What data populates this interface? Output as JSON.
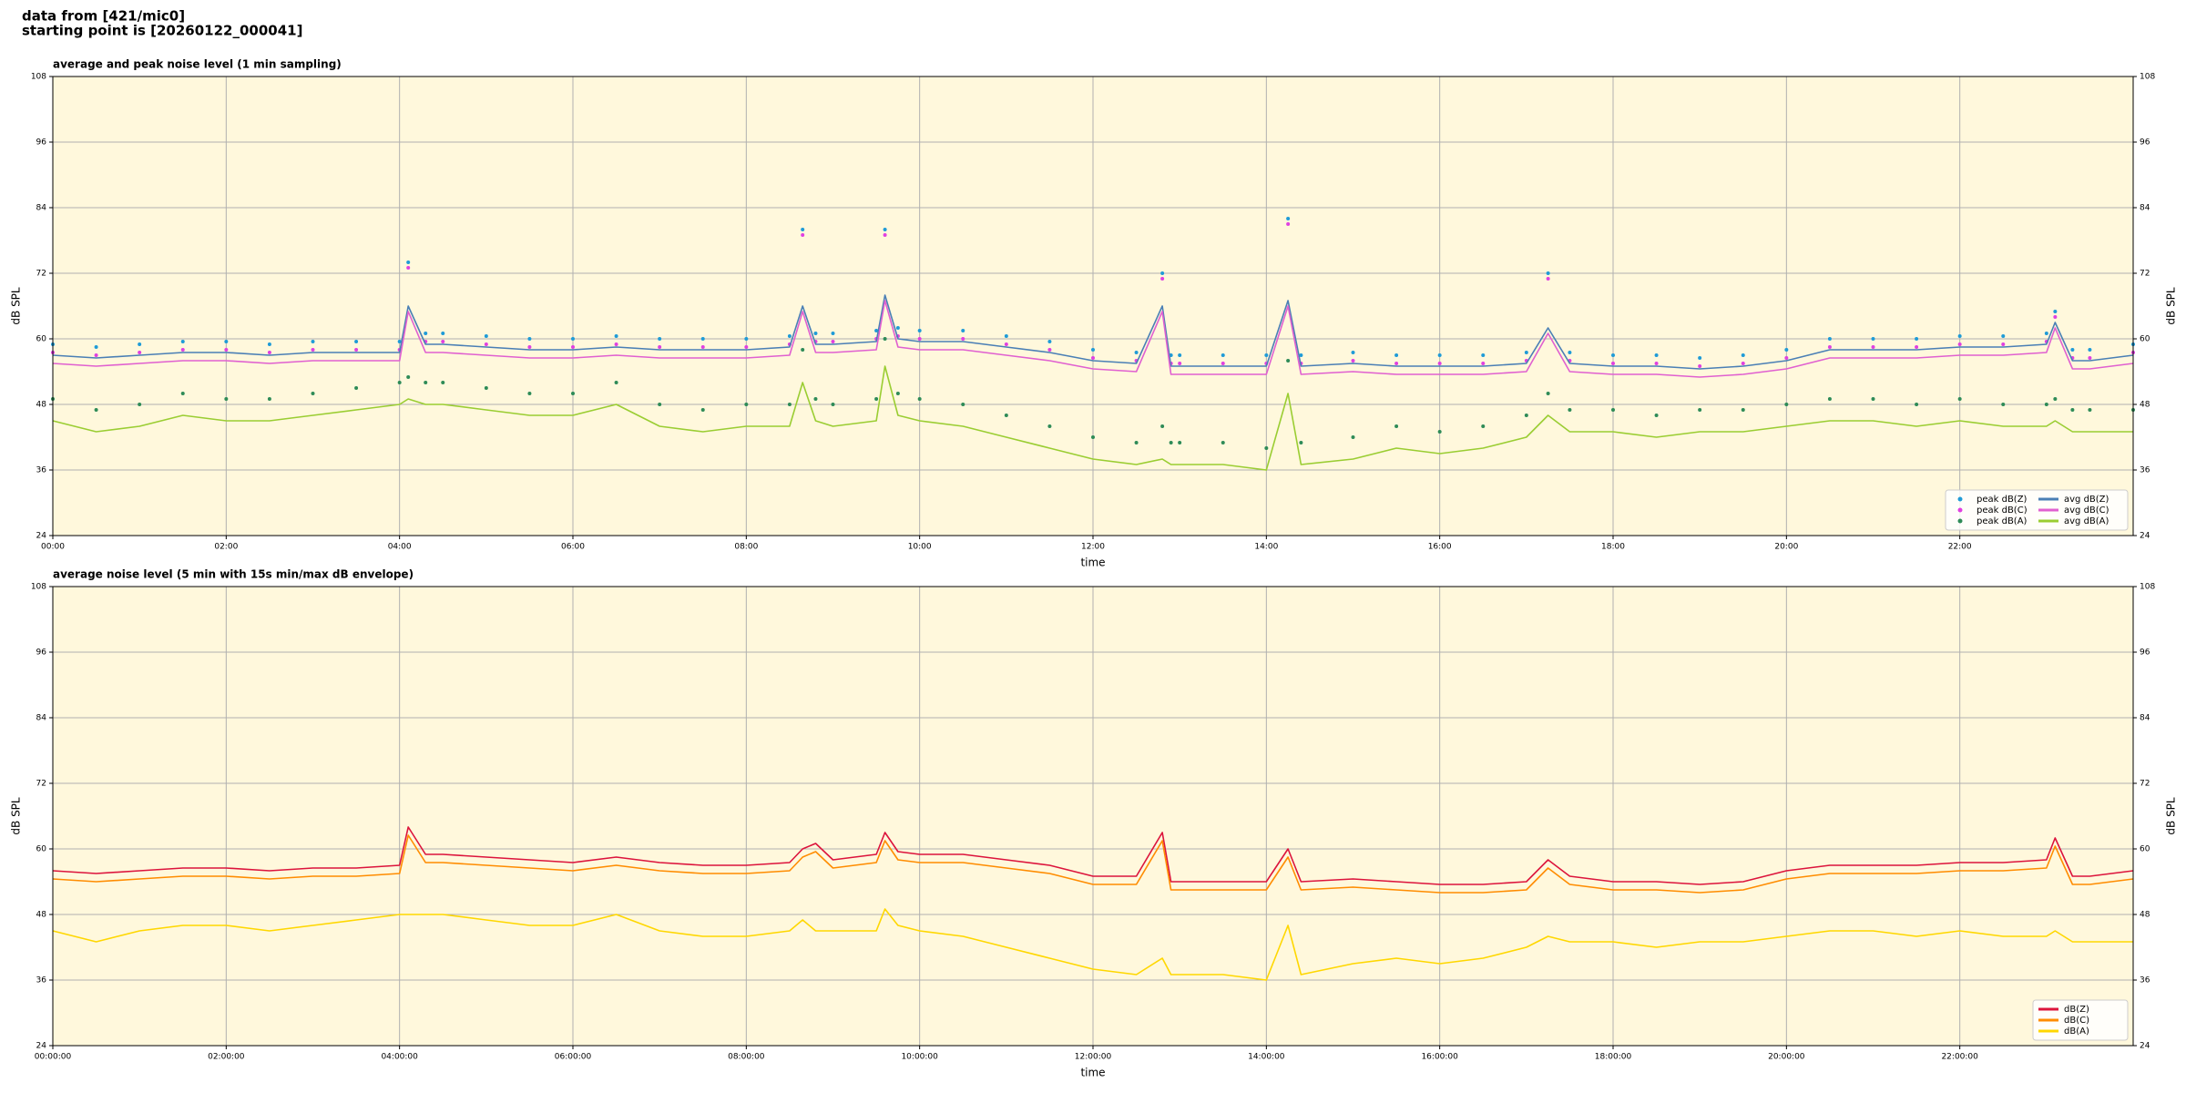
{
  "header": [
    "data from [421/mic0]",
    "starting point is [20260122_000041]"
  ],
  "chart_data": [
    {
      "type": "line",
      "title": "average and peak noise level (1 min sampling)",
      "xlabel": "time",
      "ylabel": "dB SPL",
      "xlim": [
        0,
        24
      ],
      "ylim": [
        24,
        108
      ],
      "grid": true,
      "legend": "lower right",
      "background": "#fff8dc",
      "xticks": [
        {
          "value": 0,
          "label": "00:00"
        },
        {
          "value": 2,
          "label": "02:00"
        },
        {
          "value": 4,
          "label": "04:00"
        },
        {
          "value": 6,
          "label": "06:00"
        },
        {
          "value": 8,
          "label": "08:00"
        },
        {
          "value": 10,
          "label": "10:00"
        },
        {
          "value": 12,
          "label": "12:00"
        },
        {
          "value": 14,
          "label": "14:00"
        },
        {
          "value": 16,
          "label": "16:00"
        },
        {
          "value": 18,
          "label": "18:00"
        },
        {
          "value": 20,
          "label": "20:00"
        },
        {
          "value": 22,
          "label": "22:00"
        }
      ],
      "yticks": [
        24,
        36,
        48,
        60,
        72,
        84,
        96,
        108
      ],
      "x": [
        0,
        0.5,
        1,
        1.5,
        2,
        2.5,
        3,
        3.5,
        4,
        4.1,
        4.3,
        4.5,
        5,
        5.5,
        6,
        6.5,
        7,
        7.5,
        8,
        8.5,
        8.65,
        8.8,
        9,
        9.5,
        9.6,
        9.75,
        10,
        10.5,
        11,
        11.5,
        12,
        12.5,
        12.8,
        12.9,
        13,
        13.5,
        14,
        14.25,
        14.4,
        15,
        15.5,
        16,
        16.5,
        17,
        17.25,
        17.5,
        18,
        18.5,
        19,
        19.5,
        20,
        20.5,
        21,
        21.5,
        22,
        22.5,
        23,
        23.1,
        23.3,
        23.5,
        24
      ],
      "series": [
        {
          "name": "peak dB(Z)",
          "type": "scatter",
          "color": "#1f9bd7",
          "values": [
            59,
            58.5,
            59,
            59.5,
            59.5,
            59,
            59.5,
            59.5,
            59.5,
            74,
            61,
            61,
            60.5,
            60,
            60,
            60.5,
            60,
            60,
            60,
            60.5,
            80,
            61,
            61,
            61.5,
            80,
            62,
            61.5,
            61.5,
            60.5,
            59.5,
            58,
            57.5,
            72,
            57,
            57,
            57,
            57,
            82,
            57,
            57.5,
            57,
            57,
            57,
            57.5,
            72,
            57.5,
            57,
            57,
            56.5,
            57,
            58,
            60,
            60,
            60,
            60.5,
            60.5,
            61,
            65,
            58,
            58,
            59
          ]
        },
        {
          "name": "peak dB(C)",
          "type": "scatter",
          "color": "#e040e0",
          "values": [
            57.5,
            57,
            57.5,
            58,
            58,
            57.5,
            58,
            58,
            58,
            73,
            59.5,
            59.5,
            59,
            58.5,
            58.5,
            59,
            58.5,
            58.5,
            58.5,
            59,
            79,
            59.5,
            59.5,
            60,
            79,
            60.5,
            60,
            60,
            59,
            58,
            56.5,
            56,
            71,
            55.5,
            55.5,
            55.5,
            55.5,
            81,
            55.5,
            56,
            55.5,
            55.5,
            55.5,
            56,
            71,
            56,
            55.5,
            55.5,
            55,
            55.5,
            56.5,
            58.5,
            58.5,
            58.5,
            59,
            59,
            59.5,
            64,
            56.5,
            56.5,
            57.5
          ]
        },
        {
          "name": "peak dB(A)",
          "type": "scatter",
          "color": "#2e8b57",
          "values": [
            49,
            47,
            48,
            50,
            49,
            49,
            50,
            51,
            52,
            53,
            52,
            52,
            51,
            50,
            50,
            52,
            48,
            47,
            48,
            48,
            58,
            49,
            48,
            49,
            60,
            50,
            49,
            48,
            46,
            44,
            42,
            41,
            44,
            41,
            41,
            41,
            40,
            56,
            41,
            42,
            44,
            43,
            44,
            46,
            50,
            47,
            47,
            46,
            47,
            47,
            48,
            49,
            49,
            48,
            49,
            48,
            48,
            49,
            47,
            47,
            47
          ]
        },
        {
          "name": "avg dB(Z)",
          "type": "line",
          "color": "#4a7fb5",
          "values": [
            57,
            56.5,
            57,
            57.5,
            57.5,
            57,
            57.5,
            57.5,
            57.5,
            66,
            59,
            59,
            58.5,
            58,
            58,
            58.5,
            58,
            58,
            58,
            58.5,
            66,
            59,
            59,
            59.5,
            68,
            60,
            59.5,
            59.5,
            58.5,
            57.5,
            56,
            55.5,
            66,
            55,
            55,
            55,
            55,
            67,
            55,
            55.5,
            55,
            55,
            55,
            55.5,
            62,
            55.5,
            55,
            55,
            54.5,
            55,
            56,
            58,
            58,
            58,
            58.5,
            58.5,
            59,
            63,
            56,
            56,
            57
          ]
        },
        {
          "name": "avg dB(C)",
          "type": "line",
          "color": "#e060d0",
          "values": [
            55.5,
            55,
            55.5,
            56,
            56,
            55.5,
            56,
            56,
            56,
            65,
            57.5,
            57.5,
            57,
            56.5,
            56.5,
            57,
            56.5,
            56.5,
            56.5,
            57,
            65,
            57.5,
            57.5,
            58,
            67,
            58.5,
            58,
            58,
            57,
            56,
            54.5,
            54,
            65,
            53.5,
            53.5,
            53.5,
            53.5,
            66,
            53.5,
            54,
            53.5,
            53.5,
            53.5,
            54,
            61,
            54,
            53.5,
            53.5,
            53,
            53.5,
            54.5,
            56.5,
            56.5,
            56.5,
            57,
            57,
            57.5,
            62,
            54.5,
            54.5,
            55.5
          ]
        },
        {
          "name": "avg dB(A)",
          "type": "line",
          "color": "#9acd32",
          "values": [
            45,
            43,
            44,
            46,
            45,
            45,
            46,
            47,
            48,
            49,
            48,
            48,
            47,
            46,
            46,
            48,
            44,
            43,
            44,
            44,
            52,
            45,
            44,
            45,
            55,
            46,
            45,
            44,
            42,
            40,
            38,
            37,
            38,
            37,
            37,
            37,
            36,
            50,
            37,
            38,
            40,
            39,
            40,
            42,
            46,
            43,
            43,
            42,
            43,
            43,
            44,
            45,
            45,
            44,
            45,
            44,
            44,
            45,
            43,
            43,
            43
          ]
        }
      ]
    },
    {
      "type": "line",
      "title": "average noise level (5 min with 15s min/max dB envelope)",
      "xlabel": "time",
      "ylabel": "dB SPL",
      "xlim": [
        0,
        24
      ],
      "ylim": [
        24,
        108
      ],
      "grid": true,
      "legend": "lower right",
      "background": "#fff8dc",
      "xticks": [
        {
          "value": 0,
          "label": "00:00:00"
        },
        {
          "value": 2,
          "label": "02:00:00"
        },
        {
          "value": 4,
          "label": "04:00:00"
        },
        {
          "value": 6,
          "label": "06:00:00"
        },
        {
          "value": 8,
          "label": "08:00:00"
        },
        {
          "value": 10,
          "label": "10:00:00"
        },
        {
          "value": 12,
          "label": "12:00:00"
        },
        {
          "value": 14,
          "label": "14:00:00"
        },
        {
          "value": 16,
          "label": "16:00:00"
        },
        {
          "value": 18,
          "label": "18:00:00"
        },
        {
          "value": 20,
          "label": "20:00:00"
        },
        {
          "value": 22,
          "label": "22:00:00"
        }
      ],
      "yticks": [
        24,
        36,
        48,
        60,
        72,
        84,
        96,
        108
      ],
      "x": [
        0,
        0.5,
        1,
        1.5,
        2,
        2.5,
        3,
        3.5,
        4,
        4.1,
        4.3,
        4.5,
        5,
        5.5,
        6,
        6.5,
        7,
        7.5,
        8,
        8.5,
        8.65,
        8.8,
        9,
        9.5,
        9.6,
        9.75,
        10,
        10.5,
        11,
        11.5,
        12,
        12.5,
        12.8,
        12.9,
        13,
        13.5,
        14,
        14.25,
        14.4,
        15,
        15.5,
        16,
        16.5,
        17,
        17.25,
        17.5,
        18,
        18.5,
        19,
        19.5,
        20,
        20.5,
        21,
        21.5,
        22,
        22.5,
        23,
        23.1,
        23.3,
        23.5,
        24
      ],
      "series": [
        {
          "name": "dB(Z)",
          "type": "line",
          "color": "#dc143c",
          "values": [
            56,
            55.5,
            56,
            56.5,
            56.5,
            56,
            56.5,
            56.5,
            57,
            64,
            59,
            59,
            58.5,
            58,
            57.5,
            58.5,
            57.5,
            57,
            57,
            57.5,
            60,
            61,
            58,
            59,
            63,
            59.5,
            59,
            59,
            58,
            57,
            55,
            55,
            63,
            54,
            54,
            54,
            54,
            60,
            54,
            54.5,
            54,
            53.5,
            53.5,
            54,
            58,
            55,
            54,
            54,
            53.5,
            54,
            56,
            57,
            57,
            57,
            57.5,
            57.5,
            58,
            62,
            55,
            55,
            56
          ]
        },
        {
          "name": "dB(C)",
          "type": "line",
          "color": "#ff8c00",
          "values": [
            54.5,
            54,
            54.5,
            55,
            55,
            54.5,
            55,
            55,
            55.5,
            62.5,
            57.5,
            57.5,
            57,
            56.5,
            56,
            57,
            56,
            55.5,
            55.5,
            56,
            58.5,
            59.5,
            56.5,
            57.5,
            61.5,
            58,
            57.5,
            57.5,
            56.5,
            55.5,
            53.5,
            53.5,
            61.5,
            52.5,
            52.5,
            52.5,
            52.5,
            58.5,
            52.5,
            53,
            52.5,
            52,
            52,
            52.5,
            56.5,
            53.5,
            52.5,
            52.5,
            52,
            52.5,
            54.5,
            55.5,
            55.5,
            55.5,
            56,
            56,
            56.5,
            60.5,
            53.5,
            53.5,
            54.5
          ]
        },
        {
          "name": "dB(A)",
          "type": "line",
          "color": "#ffd700",
          "values": [
            45,
            43,
            45,
            46,
            46,
            45,
            46,
            47,
            48,
            48,
            48,
            48,
            47,
            46,
            46,
            48,
            45,
            44,
            44,
            45,
            47,
            45,
            45,
            45,
            49,
            46,
            45,
            44,
            42,
            40,
            38,
            37,
            40,
            37,
            37,
            37,
            36,
            46,
            37,
            39,
            40,
            39,
            40,
            42,
            44,
            43,
            43,
            42,
            43,
            43,
            44,
            45,
            45,
            44,
            45,
            44,
            44,
            45,
            43,
            43,
            43
          ]
        }
      ]
    }
  ]
}
